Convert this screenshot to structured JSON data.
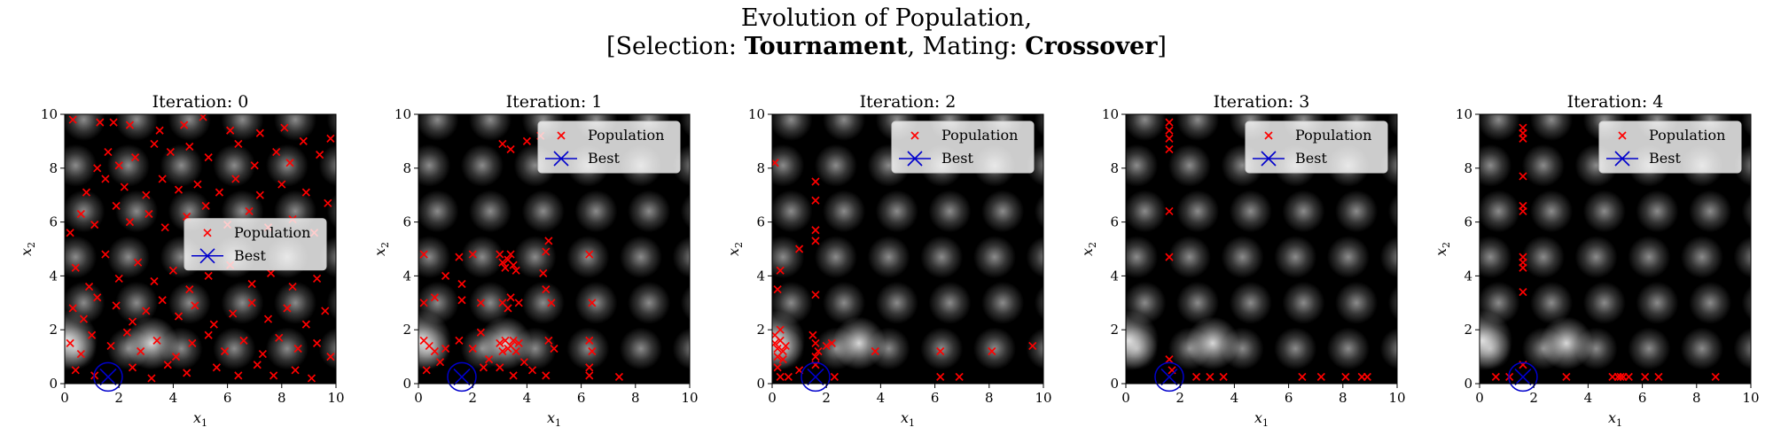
{
  "figure": {
    "title_line1": "Evolution of Population,",
    "title_line2_prefix": "[Selection: ",
    "selection": "Tournament",
    "title_line2_mid": ", Mating: ",
    "mating": "Crossover",
    "title_line2_suffix": "]"
  },
  "colors": {
    "population": "#ff0000",
    "best": "#0000cc",
    "background": "#000000"
  },
  "legend_labels": {
    "population": "Population",
    "best": "Best"
  },
  "chart_data": [
    {
      "type": "scatter",
      "title": "Iteration: 0",
      "xlabel": "x_1",
      "ylabel": "x_2",
      "xlim": [
        0,
        10
      ],
      "ylim": [
        0,
        10
      ],
      "xticks": [
        0,
        2,
        4,
        6,
        8,
        10
      ],
      "yticks": [
        0,
        2,
        4,
        6,
        8,
        10
      ],
      "legend_position": "center-right",
      "best": [
        1.6,
        0.25
      ],
      "population": [
        [
          0.3,
          9.8
        ],
        [
          1.3,
          9.7
        ],
        [
          1.8,
          9.7
        ],
        [
          2.4,
          9.6
        ],
        [
          3.5,
          9.4
        ],
        [
          4.4,
          9.6
        ],
        [
          5.1,
          9.9
        ],
        [
          6.1,
          9.4
        ],
        [
          7.2,
          9.3
        ],
        [
          8.1,
          9.5
        ],
        [
          8.8,
          9.0
        ],
        [
          9.8,
          9.1
        ],
        [
          1.2,
          8.0
        ],
        [
          1.6,
          8.6
        ],
        [
          2.0,
          8.1
        ],
        [
          2.6,
          8.4
        ],
        [
          3.3,
          8.9
        ],
        [
          3.9,
          8.6
        ],
        [
          4.6,
          8.8
        ],
        [
          5.3,
          8.4
        ],
        [
          6.4,
          8.9
        ],
        [
          7.0,
          8.1
        ],
        [
          7.8,
          8.6
        ],
        [
          8.3,
          8.2
        ],
        [
          9.4,
          8.5
        ],
        [
          0.8,
          7.1
        ],
        [
          1.5,
          7.6
        ],
        [
          2.2,
          7.3
        ],
        [
          3.0,
          7.0
        ],
        [
          3.6,
          7.6
        ],
        [
          4.2,
          7.2
        ],
        [
          4.9,
          7.4
        ],
        [
          5.7,
          7.1
        ],
        [
          6.3,
          7.6
        ],
        [
          7.2,
          7.0
        ],
        [
          8.0,
          7.4
        ],
        [
          8.9,
          7.1
        ],
        [
          9.7,
          6.7
        ],
        [
          0.2,
          5.6
        ],
        [
          0.6,
          6.3
        ],
        [
          1.1,
          5.9
        ],
        [
          1.9,
          6.6
        ],
        [
          2.4,
          6.0
        ],
        [
          3.1,
          6.3
        ],
        [
          3.7,
          5.8
        ],
        [
          4.5,
          6.2
        ],
        [
          5.2,
          6.6
        ],
        [
          6.0,
          5.9
        ],
        [
          6.8,
          6.4
        ],
        [
          7.5,
          5.8
        ],
        [
          8.4,
          6.1
        ],
        [
          9.2,
          5.6
        ],
        [
          0.4,
          4.3
        ],
        [
          0.9,
          3.6
        ],
        [
          1.5,
          4.8
        ],
        [
          2.0,
          3.9
        ],
        [
          2.7,
          4.5
        ],
        [
          3.3,
          3.8
        ],
        [
          4.0,
          4.2
        ],
        [
          4.6,
          3.5
        ],
        [
          5.3,
          4.0
        ],
        [
          6.1,
          4.4
        ],
        [
          6.9,
          3.7
        ],
        [
          7.6,
          4.1
        ],
        [
          8.4,
          3.6
        ],
        [
          9.3,
          3.9
        ],
        [
          0.3,
          2.8
        ],
        [
          0.7,
          2.4
        ],
        [
          1.2,
          3.2
        ],
        [
          1.9,
          2.9
        ],
        [
          2.5,
          2.3
        ],
        [
          3.0,
          2.7
        ],
        [
          3.6,
          3.1
        ],
        [
          4.2,
          2.5
        ],
        [
          4.8,
          2.9
        ],
        [
          5.5,
          2.2
        ],
        [
          6.2,
          2.6
        ],
        [
          6.9,
          3.0
        ],
        [
          7.5,
          2.4
        ],
        [
          8.2,
          2.8
        ],
        [
          8.9,
          2.2
        ],
        [
          9.6,
          2.7
        ],
        [
          0.2,
          1.5
        ],
        [
          0.6,
          1.1
        ],
        [
          1.0,
          1.8
        ],
        [
          1.7,
          1.4
        ],
        [
          2.3,
          1.9
        ],
        [
          2.8,
          1.2
        ],
        [
          3.4,
          1.6
        ],
        [
          4.1,
          1.0
        ],
        [
          4.7,
          1.5
        ],
        [
          5.3,
          1.8
        ],
        [
          5.9,
          1.2
        ],
        [
          6.6,
          1.6
        ],
        [
          7.3,
          1.1
        ],
        [
          7.9,
          1.7
        ],
        [
          8.6,
          1.3
        ],
        [
          9.3,
          1.5
        ],
        [
          9.8,
          1.0
        ],
        [
          0.4,
          0.5
        ],
        [
          1.1,
          0.3
        ],
        [
          2.5,
          0.6
        ],
        [
          3.2,
          0.2
        ],
        [
          3.8,
          0.7
        ],
        [
          4.5,
          0.4
        ],
        [
          5.6,
          0.6
        ],
        [
          6.4,
          0.3
        ],
        [
          7.1,
          0.7
        ],
        [
          7.7,
          0.3
        ],
        [
          8.5,
          0.5
        ],
        [
          9.1,
          0.2
        ]
      ]
    },
    {
      "type": "scatter",
      "title": "Iteration: 1",
      "xlabel": "x_1",
      "ylabel": "x_2",
      "xlim": [
        0,
        10
      ],
      "ylim": [
        0,
        10
      ],
      "xticks": [
        0,
        2,
        4,
        6,
        8,
        10
      ],
      "yticks": [
        0,
        2,
        4,
        6,
        8,
        10
      ],
      "legend_position": "upper-right",
      "best": [
        1.6,
        0.25
      ],
      "population": [
        [
          3.1,
          8.9
        ],
        [
          3.4,
          8.7
        ],
        [
          4.0,
          9.0
        ],
        [
          4.5,
          9.2
        ],
        [
          0.2,
          4.8
        ],
        [
          1.0,
          4.0
        ],
        [
          1.5,
          4.7
        ],
        [
          1.6,
          3.7
        ],
        [
          2.0,
          4.8
        ],
        [
          1.6,
          3.1
        ],
        [
          0.2,
          3.0
        ],
        [
          0.6,
          3.2
        ],
        [
          2.3,
          3.0
        ],
        [
          3.0,
          4.8
        ],
        [
          3.1,
          4.5
        ],
        [
          3.2,
          4.3
        ],
        [
          3.3,
          4.6
        ],
        [
          3.4,
          4.8
        ],
        [
          3.5,
          4.4
        ],
        [
          3.6,
          4.2
        ],
        [
          3.1,
          3.0
        ],
        [
          3.4,
          3.2
        ],
        [
          3.7,
          3.0
        ],
        [
          3.3,
          2.8
        ],
        [
          4.7,
          4.9
        ],
        [
          4.8,
          5.3
        ],
        [
          4.6,
          4.1
        ],
        [
          4.7,
          3.5
        ],
        [
          4.9,
          3.0
        ],
        [
          6.3,
          4.8
        ],
        [
          6.4,
          3.0
        ],
        [
          0.2,
          1.6
        ],
        [
          0.4,
          1.4
        ],
        [
          0.6,
          1.2
        ],
        [
          1.0,
          1.3
        ],
        [
          1.5,
          1.6
        ],
        [
          2.0,
          1.3
        ],
        [
          2.3,
          1.9
        ],
        [
          3.0,
          1.5
        ],
        [
          3.1,
          1.2
        ],
        [
          3.2,
          1.6
        ],
        [
          3.3,
          1.3
        ],
        [
          3.4,
          1.4
        ],
        [
          3.5,
          1.6
        ],
        [
          3.6,
          1.2
        ],
        [
          3.7,
          1.5
        ],
        [
          4.8,
          1.6
        ],
        [
          5.0,
          1.3
        ],
        [
          6.3,
          1.6
        ],
        [
          6.4,
          1.2
        ],
        [
          0.3,
          0.5
        ],
        [
          0.8,
          0.8
        ],
        [
          2.4,
          0.6
        ],
        [
          2.6,
          0.9
        ],
        [
          3.0,
          0.6
        ],
        [
          3.5,
          0.3
        ],
        [
          3.9,
          0.8
        ],
        [
          4.2,
          0.5
        ],
        [
          4.7,
          0.3
        ],
        [
          6.3,
          0.3
        ],
        [
          6.3,
          0.6
        ],
        [
          7.4,
          0.25
        ]
      ]
    },
    {
      "type": "scatter",
      "title": "Iteration: 2",
      "xlabel": "x_1",
      "ylabel": "x_2",
      "xlim": [
        0,
        10
      ],
      "ylim": [
        0,
        10
      ],
      "xticks": [
        0,
        2,
        4,
        6,
        8,
        10
      ],
      "yticks": [
        0,
        2,
        4,
        6,
        8,
        10
      ],
      "legend_position": "upper-right",
      "best": [
        1.6,
        0.25
      ],
      "population": [
        [
          0.1,
          8.2
        ],
        [
          1.6,
          7.5
        ],
        [
          1.6,
          6.8
        ],
        [
          1.6,
          5.7
        ],
        [
          1.6,
          5.3
        ],
        [
          1.0,
          5.0
        ],
        [
          0.3,
          4.2
        ],
        [
          0.2,
          3.5
        ],
        [
          1.6,
          3.3
        ],
        [
          0.1,
          1.5
        ],
        [
          0.2,
          1.3
        ],
        [
          0.3,
          1.6
        ],
        [
          0.4,
          1.2
        ],
        [
          0.5,
          1.4
        ],
        [
          0.2,
          1.0
        ],
        [
          0.4,
          0.9
        ],
        [
          0.1,
          1.8
        ],
        [
          0.3,
          2.0
        ],
        [
          0.2,
          0.6
        ],
        [
          1.5,
          1.8
        ],
        [
          1.6,
          1.5
        ],
        [
          1.7,
          1.2
        ],
        [
          1.6,
          1.0
        ],
        [
          1.6,
          0.7
        ],
        [
          2.0,
          1.4
        ],
        [
          2.2,
          1.5
        ],
        [
          1.0,
          0.5
        ],
        [
          0.6,
          0.25
        ],
        [
          0.3,
          0.25
        ],
        [
          3.8,
          1.2
        ],
        [
          6.2,
          1.2
        ],
        [
          8.1,
          1.2
        ],
        [
          9.6,
          1.4
        ],
        [
          6.2,
          0.25
        ],
        [
          6.9,
          0.25
        ],
        [
          2.3,
          0.25
        ]
      ]
    },
    {
      "type": "scatter",
      "title": "Iteration: 3",
      "xlabel": "x_1",
      "ylabel": "x_2",
      "xlim": [
        0,
        10
      ],
      "ylim": [
        0,
        10
      ],
      "xticks": [
        0,
        2,
        4,
        6,
        8,
        10
      ],
      "yticks": [
        0,
        2,
        4,
        6,
        8,
        10
      ],
      "legend_position": "upper-right",
      "best": [
        1.6,
        0.25
      ],
      "population": [
        [
          1.6,
          9.7
        ],
        [
          1.6,
          9.4
        ],
        [
          1.6,
          9.1
        ],
        [
          1.6,
          8.7
        ],
        [
          1.6,
          6.4
        ],
        [
          1.6,
          4.7
        ],
        [
          1.6,
          0.9
        ],
        [
          1.7,
          0.5
        ],
        [
          2.6,
          0.25
        ],
        [
          3.1,
          0.25
        ],
        [
          3.6,
          0.25
        ],
        [
          6.5,
          0.25
        ],
        [
          7.2,
          0.25
        ],
        [
          8.1,
          0.25
        ],
        [
          8.7,
          0.25
        ],
        [
          8.9,
          0.25
        ]
      ]
    },
    {
      "type": "scatter",
      "title": "Iteration: 4",
      "xlabel": "x_1",
      "ylabel": "x_2",
      "xlim": [
        0,
        10
      ],
      "ylim": [
        0,
        10
      ],
      "xticks": [
        0,
        2,
        4,
        6,
        8,
        10
      ],
      "yticks": [
        0,
        2,
        4,
        6,
        8,
        10
      ],
      "legend_position": "upper-right",
      "best": [
        1.6,
        0.25
      ],
      "population": [
        [
          1.6,
          9.5
        ],
        [
          1.6,
          9.3
        ],
        [
          1.6,
          9.1
        ],
        [
          1.6,
          7.7
        ],
        [
          1.6,
          6.6
        ],
        [
          1.6,
          6.4
        ],
        [
          1.6,
          4.7
        ],
        [
          1.6,
          4.5
        ],
        [
          1.6,
          4.3
        ],
        [
          1.6,
          3.4
        ],
        [
          1.6,
          0.7
        ],
        [
          0.6,
          0.25
        ],
        [
          1.1,
          0.25
        ],
        [
          3.2,
          0.25
        ],
        [
          4.9,
          0.25
        ],
        [
          5.1,
          0.25
        ],
        [
          5.2,
          0.25
        ],
        [
          5.3,
          0.25
        ],
        [
          5.5,
          0.25
        ],
        [
          6.1,
          0.25
        ],
        [
          6.6,
          0.25
        ],
        [
          8.7,
          0.25
        ]
      ]
    }
  ]
}
